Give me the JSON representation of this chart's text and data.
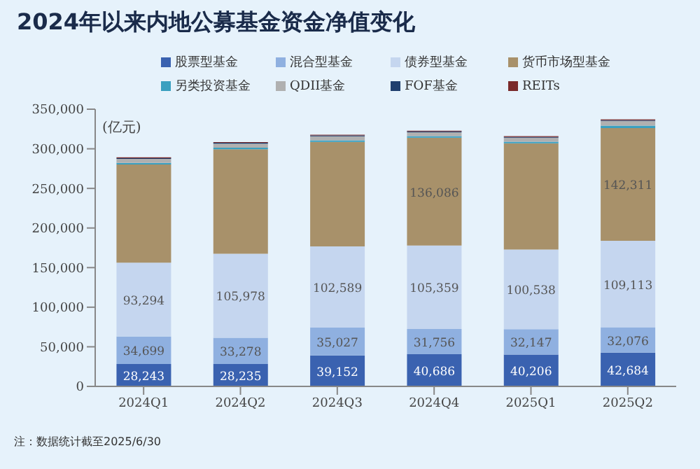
{
  "chart_data": {
    "type": "bar",
    "title": "2024年以来内地公募基金资金净值变化",
    "ylabel": "(亿元)",
    "stacked": true,
    "legend": "top",
    "categories": [
      "2024Q1",
      "2024Q2",
      "2024Q3",
      "2024Q4",
      "2025Q1",
      "2025Q2"
    ],
    "series": [
      {
        "name": "股票型基金",
        "color": "#3a62b0",
        "values": [
          28243,
          28235,
          39152,
          40686,
          40206,
          42684
        ],
        "value_labels": [
          "28,243",
          "28,235",
          "39,152",
          "40,686",
          "40,206",
          "42,684"
        ]
      },
      {
        "name": "混合型基金",
        "color": "#8fb0e0",
        "values": [
          34699,
          33278,
          35027,
          31756,
          32147,
          32076
        ],
        "value_labels": [
          "34,699",
          "33,278",
          "35,027",
          "31,756",
          "32,147",
          "32,076"
        ]
      },
      {
        "name": "债券型基金",
        "color": "#c5d6ef",
        "values": [
          93294,
          105978,
          102589,
          105359,
          100538,
          109113
        ],
        "value_labels": [
          "93,294",
          "105,978",
          "102,589",
          "105,359",
          "100,538",
          "109,113"
        ]
      },
      {
        "name": "货币市场型基金",
        "color": "#a8916a",
        "values": [
          124000,
          132000,
          132000,
          136086,
          134000,
          142311
        ],
        "value_labels": [
          null,
          null,
          null,
          "136,086",
          null,
          "142,311"
        ]
      },
      {
        "name": "另类投资基金",
        "color": "#3aa0c0",
        "values": [
          2000,
          2000,
          2000,
          2000,
          2000,
          3000
        ]
      },
      {
        "name": "QDII基金",
        "color": "#b0b0b0",
        "values": [
          5000,
          5000,
          5000,
          5000,
          5000,
          6000
        ]
      },
      {
        "name": "FOF基金",
        "color": "#1f3f6e",
        "values": [
          1000,
          1000,
          1000,
          1000,
          1000,
          1000
        ]
      },
      {
        "name": "REITs",
        "color": "#7a2a2a",
        "values": [
          1000,
          1000,
          1000,
          1000,
          1000,
          1000
        ]
      }
    ],
    "ylim": [
      0,
      350000
    ],
    "yticks": [
      {
        "value": 0,
        "label": "0"
      },
      {
        "value": 50000,
        "label": "50,000"
      },
      {
        "value": 100000,
        "label": "100,000"
      },
      {
        "value": 150000,
        "label": "150,000"
      },
      {
        "value": 200000,
        "label": "200,000"
      },
      {
        "value": 250000,
        "label": "250,000"
      },
      {
        "value": 300000,
        "label": "300,000"
      },
      {
        "value": 350000,
        "label": "350,000"
      }
    ],
    "grid": false,
    "annotations": [
      "注：数据统计截至2025/6/30"
    ]
  }
}
